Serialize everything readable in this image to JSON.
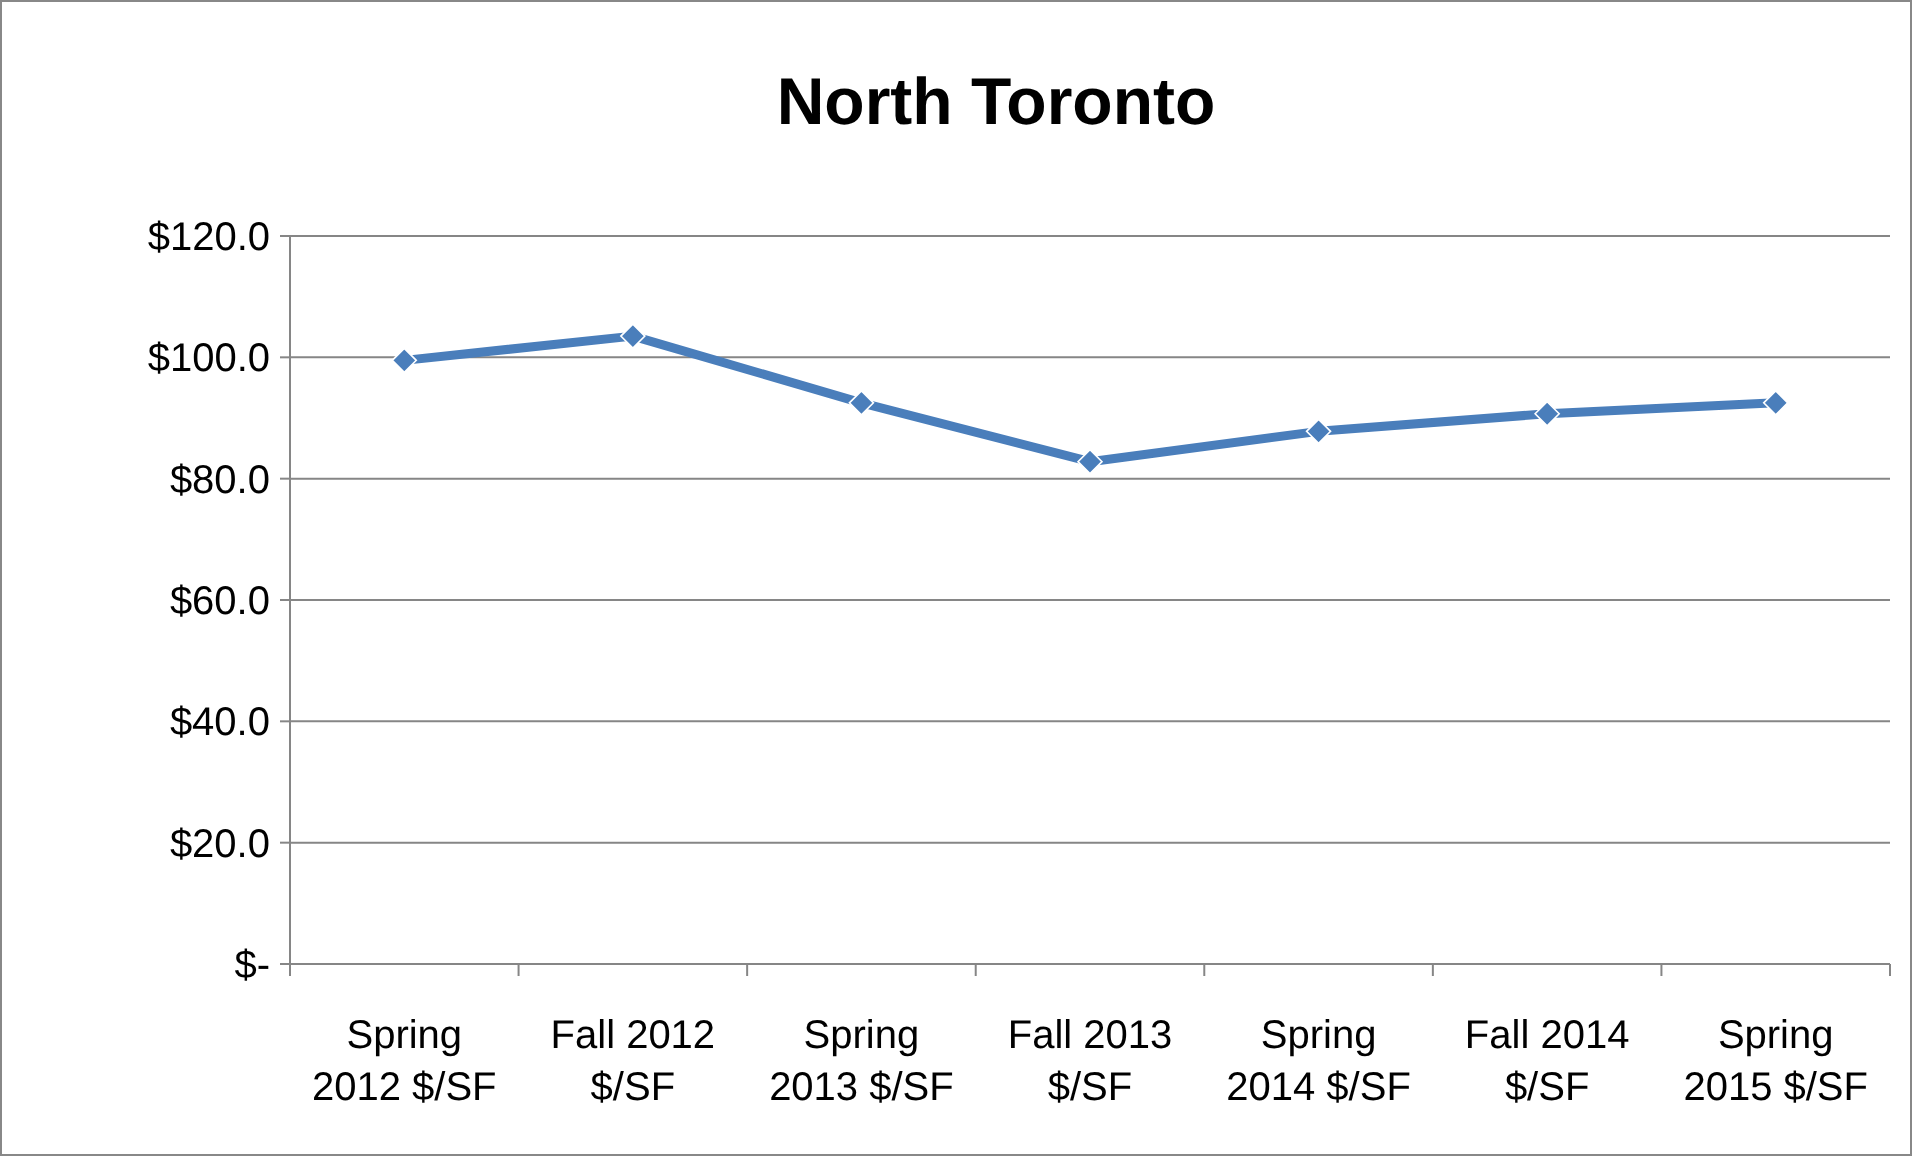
{
  "chart_data": {
    "type": "line",
    "title": "North Toronto",
    "categories": [
      "Spring 2012 $/SF",
      "Fall 2012 $/SF",
      "Spring 2013 $/SF",
      "Fall 2013 $/SF",
      "Spring 2014 $/SF",
      "Fall 2014 $/SF",
      "Spring 2015 $/SF"
    ],
    "series": [
      {
        "color": "#4a7ebb",
        "values": [
          99.5,
          103.5,
          92.5,
          82.8,
          87.8,
          90.7,
          92.5
        ]
      }
    ],
    "ylim": [
      0,
      120
    ],
    "yticks": [
      {
        "value": 0,
        "label": "$-"
      },
      {
        "value": 20,
        "label": "$20.0"
      },
      {
        "value": 40,
        "label": "$40.0"
      },
      {
        "value": 60,
        "label": "$60.0"
      },
      {
        "value": 80,
        "label": "$80.0"
      },
      {
        "value": 100,
        "label": "$100.0"
      },
      {
        "value": 120,
        "label": "$120.0"
      }
    ],
    "grid": "y",
    "marker": "diamond",
    "line_style": "solid"
  }
}
